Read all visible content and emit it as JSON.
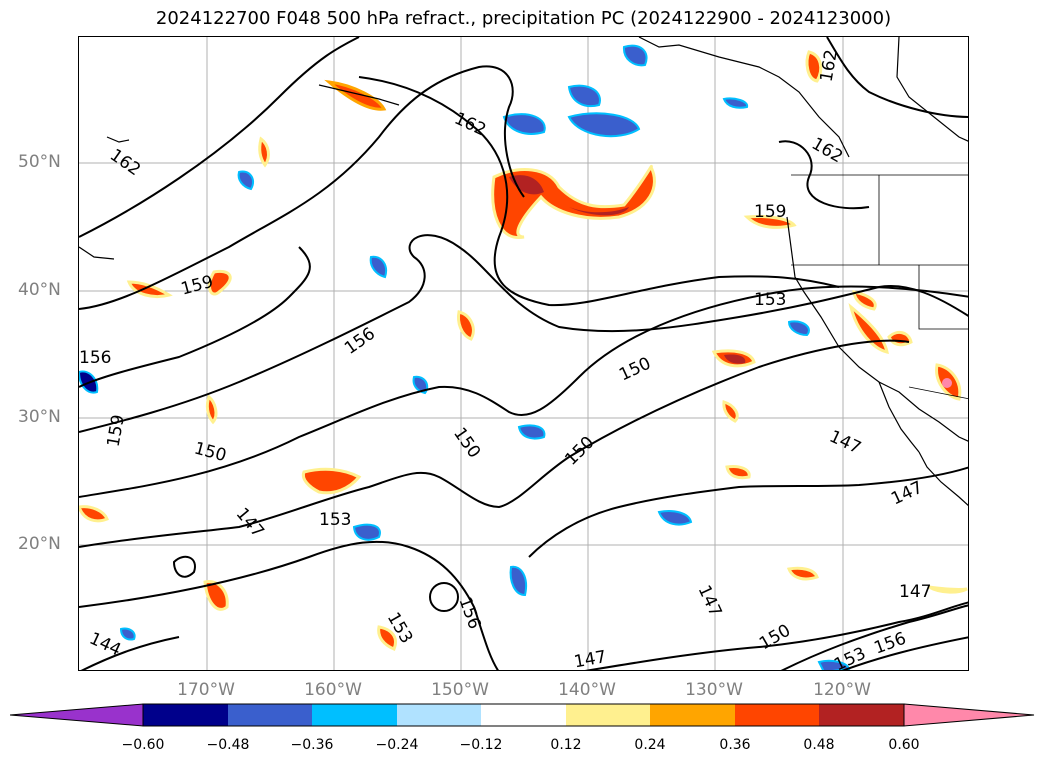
{
  "title": "2024122700 F048 500 hPa refract., precipitation PC (2024122900 - 2024123000)",
  "lat_labels": [
    "50°N",
    "40°N",
    "30°N",
    "20°N"
  ],
  "lon_labels": [
    "170°W",
    "160°W",
    "150°W",
    "140°W",
    "130°W",
    "120°W"
  ],
  "contour_labels": [
    "162",
    "162",
    "162",
    "162",
    "159",
    "159",
    "159",
    "156",
    "156",
    "156",
    "156",
    "153",
    "153",
    "153",
    "153",
    "150",
    "150",
    "150",
    "150",
    "150",
    "147",
    "147",
    "147",
    "147",
    "147",
    "147",
    "144"
  ],
  "colorbar": {
    "tick_labels": [
      "−0.60",
      "−0.48",
      "−0.36",
      "−0.24",
      "−0.12",
      "0.12",
      "0.24",
      "0.36",
      "0.48",
      "0.60"
    ],
    "colors": [
      "#9932cc",
      "#00008b",
      "#3a5fcd",
      "#00bfff",
      "#b0e2ff",
      "#ffffff",
      "#fff08f",
      "#ffa500",
      "#ff4500",
      "#b22222",
      "#ff88aa"
    ]
  },
  "map": {
    "projection": "cylindrical",
    "lon_range_deg_west": [
      180,
      110
    ],
    "lat_range_deg_north": [
      10,
      60
    ],
    "gridlines": true,
    "contour_field": "500 hPa refractivity",
    "shaded_field": "precipitation PC"
  }
}
